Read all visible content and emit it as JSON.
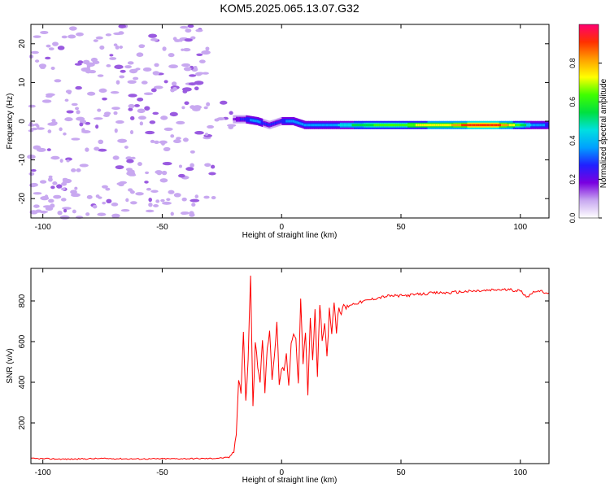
{
  "figure": {
    "title": "KOM5.2025.065.13.07.G32"
  },
  "chart_data": [
    {
      "type": "heatmap",
      "xlabel": "Height of straight line (km)",
      "ylabel": "Frequency (Hz)",
      "xlim": [
        -105,
        112
      ],
      "ylim": [
        -25,
        25
      ],
      "xticks": [
        -100,
        -50,
        0,
        50,
        100
      ],
      "yticks": [
        -20,
        -10,
        0,
        10,
        20
      ],
      "colorbar": {
        "label": "Normalized spectral amplitude",
        "range": [
          0,
          1
        ],
        "ticks": [
          "0.0",
          "0.2",
          "0.4",
          "0.6",
          "0.8"
        ],
        "colormap": [
          "#ffffff",
          "#c8a8f0",
          "#7a00e0",
          "#2020ff",
          "#00a0ff",
          "#00e0e0",
          "#00e040",
          "#40ff00",
          "#ffff00",
          "#ffa000",
          "#ff3000",
          "#ff0070"
        ]
      },
      "signal_trace": [
        {
          "x": -20,
          "freq": 0.5,
          "amp": 0.15
        },
        {
          "x": -15,
          "freq": 0.5,
          "amp": 0.3
        },
        {
          "x": -10,
          "freq": 0,
          "amp": 0.35
        },
        {
          "x": -5,
          "freq": -1,
          "amp": 0.25
        },
        {
          "x": 0,
          "freq": 0,
          "amp": 0.3
        },
        {
          "x": 5,
          "freq": 0,
          "amp": 0.35
        },
        {
          "x": 10,
          "freq": -1,
          "amp": 0.35
        },
        {
          "x": 20,
          "freq": -1,
          "amp": 0.35
        },
        {
          "x": 30,
          "freq": -1,
          "amp": 0.5
        },
        {
          "x": 40,
          "freq": -1,
          "amp": 0.6
        },
        {
          "x": 50,
          "freq": -1,
          "amp": 0.65
        },
        {
          "x": 60,
          "freq": -1,
          "amp": 0.7
        },
        {
          "x": 70,
          "freq": -1,
          "amp": 0.75
        },
        {
          "x": 80,
          "freq": -1,
          "amp": 0.95
        },
        {
          "x": 90,
          "freq": -1,
          "amp": 0.95
        },
        {
          "x": 100,
          "freq": -1,
          "amp": 0.6
        },
        {
          "x": 105,
          "freq": -1,
          "amp": 0.4
        },
        {
          "x": 112,
          "freq": -1,
          "amp": 0.3
        }
      ],
      "colors": {
        "noise": "#c8a8f0",
        "noise_dark": "#9a5ae0"
      }
    },
    {
      "type": "line",
      "xlabel": "Height of straight line (km)",
      "ylabel": "SNR (v/v)",
      "xlim": [
        -105,
        112
      ],
      "ylim": [
        0,
        960
      ],
      "xticks": [
        -100,
        -50,
        0,
        50,
        100
      ],
      "yticks": [
        200,
        400,
        600,
        800
      ],
      "series": [
        {
          "color": "#ff0000",
          "x": [
            -105,
            -90,
            -75,
            -60,
            -45,
            -30,
            -22,
            -20,
            -19,
            -18,
            -17,
            -16,
            -15,
            -14,
            -13,
            -12,
            -11,
            -10,
            -9,
            -8,
            -7,
            -6,
            -5,
            -4,
            -3,
            -2,
            -1,
            0,
            1,
            2,
            3,
            4,
            5,
            6,
            7,
            8,
            9,
            10,
            11,
            12,
            13,
            14,
            15,
            16,
            17,
            18,
            19,
            20,
            21,
            22,
            23,
            24,
            25,
            26,
            27,
            28,
            30,
            35,
            40,
            45,
            50,
            55,
            60,
            65,
            70,
            75,
            80,
            85,
            90,
            95,
            100,
            103,
            106,
            109,
            112
          ],
          "y": [
            25,
            22,
            25,
            23,
            24,
            25,
            30,
            60,
            150,
            420,
            350,
            650,
            300,
            520,
            930,
            280,
            600,
            480,
            390,
            620,
            350,
            560,
            650,
            420,
            520,
            700,
            400,
            470,
            450,
            550,
            380,
            580,
            650,
            600,
            400,
            800,
            480,
            650,
            350,
            720,
            520,
            750,
            440,
            790,
            600,
            700,
            520,
            760,
            650,
            800,
            640,
            780,
            720,
            790,
            760,
            780,
            785,
            800,
            815,
            825,
            825,
            830,
            835,
            840,
            840,
            845,
            848,
            850,
            855,
            855,
            850,
            820,
            850,
            845,
            840
          ]
        }
      ]
    }
  ]
}
